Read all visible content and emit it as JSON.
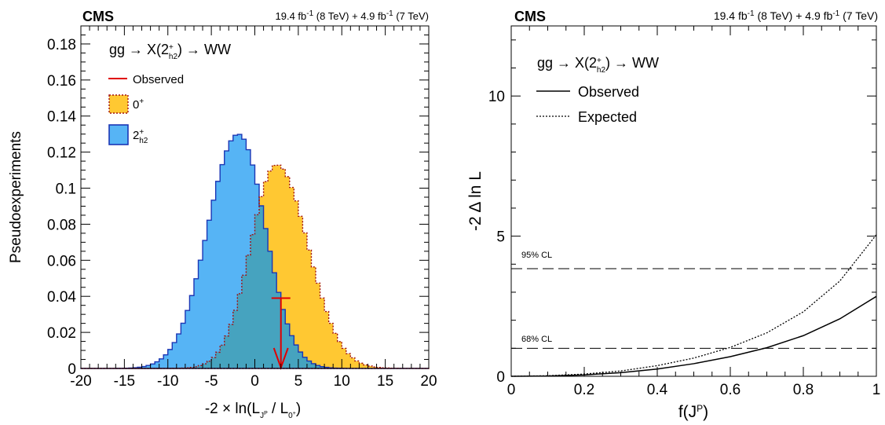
{
  "chart_data": [
    {
      "type": "histogram",
      "cms_label": "CMS",
      "lumi_text": "19.4 fb-1 (8 TeV) + 4.9 fb-1 (7 TeV)",
      "process_label": "gg → X(2+h2) → WW",
      "xlabel": "-2 × ln(L_JP / L_0+)",
      "ylabel": "Pseudoexperiments",
      "xlim": [
        -20,
        20
      ],
      "ylim": [
        0,
        0.19
      ],
      "xticks": [
        -20,
        -15,
        -10,
        -5,
        0,
        5,
        10,
        15,
        20
      ],
      "yticks": [
        0,
        0.02,
        0.04,
        0.06,
        0.08,
        0.1,
        0.12,
        0.14,
        0.16,
        0.18
      ],
      "legend": {
        "observed": "Observed",
        "null": "0+",
        "alt": "2+h2",
        "placement": "top-left"
      },
      "colors": {
        "alt_fill": "#56b4f5",
        "alt_line": "#1b36b5",
        "null_fill": "#ffc832",
        "null_line": "#a01010",
        "overlap_fill": "#46a3bf",
        "observed": "#e00000"
      },
      "observed_x": 3.0,
      "observed_arrow_top": 0.039,
      "alt_distribution": {
        "name": "2+h2",
        "mean": -1.9,
        "peak": 0.13,
        "sigma_left": 3.5,
        "sigma_right": 3.1
      },
      "null_distribution": {
        "name": "0+",
        "mean": 2.5,
        "peak": 0.113,
        "sigma_left": 3.0,
        "sigma_right": 3.6
      },
      "bin_width": 0.5
    },
    {
      "type": "line",
      "cms_label": "CMS",
      "lumi_text": "19.4 fb-1 (8 TeV) + 4.9 fb-1 (7 TeV)",
      "process_label": "gg → X(2+h2) → WW",
      "xlabel": "f(JP)",
      "ylabel": "-2 Δ ln L",
      "xlim": [
        0,
        1
      ],
      "ylim": [
        0,
        12.5
      ],
      "xticks": [
        0,
        0.2,
        0.4,
        0.6,
        0.8,
        1
      ],
      "yticks": [
        0,
        5,
        10
      ],
      "legend": {
        "observed": "Observed",
        "expected": "Expected",
        "placement": "top-left"
      },
      "reference_lines": [
        {
          "label": "95% CL",
          "y": 3.84
        },
        {
          "label": "68% CL",
          "y": 1.0
        }
      ],
      "series": [
        {
          "name": "Observed",
          "style": "solid",
          "x": [
            0,
            0.1,
            0.2,
            0.3,
            0.4,
            0.5,
            0.6,
            0.7,
            0.8,
            0.9,
            1.0
          ],
          "y": [
            0,
            0.01,
            0.05,
            0.13,
            0.26,
            0.45,
            0.7,
            1.02,
            1.45,
            2.05,
            2.85
          ]
        },
        {
          "name": "Expected",
          "style": "dotted",
          "x": [
            0,
            0.1,
            0.2,
            0.3,
            0.4,
            0.5,
            0.6,
            0.7,
            0.8,
            0.9,
            1.0
          ],
          "y": [
            0,
            0.02,
            0.08,
            0.19,
            0.38,
            0.65,
            1.03,
            1.55,
            2.3,
            3.4,
            5.05
          ]
        }
      ]
    }
  ]
}
